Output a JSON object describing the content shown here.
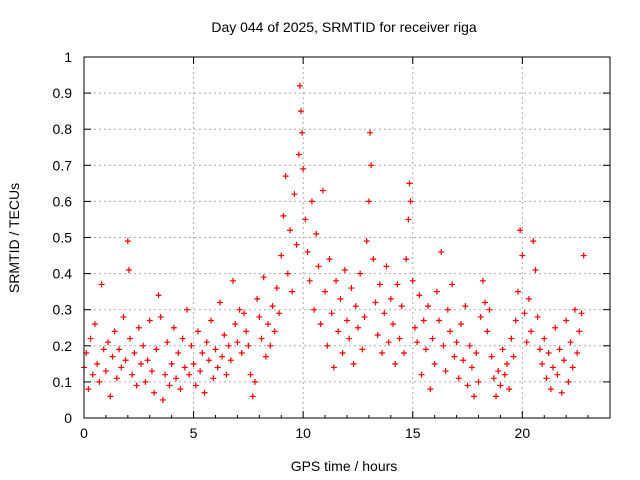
{
  "chart_data": {
    "type": "scatter",
    "title": "Day 044 of 2025, SRMTID for receiver riga",
    "xlabel": "GPS time / hours",
    "ylabel": "SRMTID / TECUs",
    "xlim": [
      0,
      24
    ],
    "ylim": [
      0,
      1
    ],
    "x_ticks": [
      0,
      5,
      10,
      15,
      20
    ],
    "x_tick_labels": [
      "0",
      "5",
      "10",
      "15",
      "20"
    ],
    "y_ticks": [
      0,
      0.1,
      0.2,
      0.3,
      0.4,
      0.5,
      0.6,
      0.7,
      0.8,
      0.9,
      1
    ],
    "y_tick_labels": [
      "0",
      "0.1",
      "0.2",
      "0.3",
      "0.4",
      "0.5",
      "0.6",
      "0.7",
      "0.8",
      "0.9",
      "1"
    ],
    "grid": true,
    "marker": "plus",
    "color": "#ff0000",
    "series": [
      {
        "name": "SRMTID",
        "points": [
          [
            0.0,
            0.14
          ],
          [
            0.1,
            0.18
          ],
          [
            0.2,
            0.08
          ],
          [
            0.3,
            0.22
          ],
          [
            0.4,
            0.12
          ],
          [
            0.5,
            0.26
          ],
          [
            0.6,
            0.15
          ],
          [
            0.7,
            0.1
          ],
          [
            0.8,
            0.37
          ],
          [
            0.9,
            0.19
          ],
          [
            1.0,
            0.13
          ],
          [
            1.1,
            0.21
          ],
          [
            1.2,
            0.06
          ],
          [
            1.3,
            0.17
          ],
          [
            1.4,
            0.24
          ],
          [
            1.5,
            0.11
          ],
          [
            1.6,
            0.19
          ],
          [
            1.7,
            0.14
          ],
          [
            1.8,
            0.28
          ],
          [
            1.9,
            0.16
          ],
          [
            2.0,
            0.49
          ],
          [
            2.05,
            0.41
          ],
          [
            2.1,
            0.22
          ],
          [
            2.2,
            0.12
          ],
          [
            2.3,
            0.18
          ],
          [
            2.4,
            0.09
          ],
          [
            2.5,
            0.25
          ],
          [
            2.6,
            0.15
          ],
          [
            2.7,
            0.2
          ],
          [
            2.8,
            0.1
          ],
          [
            2.9,
            0.16
          ],
          [
            3.0,
            0.27
          ],
          [
            3.1,
            0.13
          ],
          [
            3.2,
            0.07
          ],
          [
            3.3,
            0.19
          ],
          [
            3.4,
            0.34
          ],
          [
            3.5,
            0.28
          ],
          [
            3.6,
            0.05
          ],
          [
            3.7,
            0.12
          ],
          [
            3.8,
            0.21
          ],
          [
            3.9,
            0.09
          ],
          [
            4.0,
            0.15
          ],
          [
            4.1,
            0.25
          ],
          [
            4.2,
            0.11
          ],
          [
            4.3,
            0.18
          ],
          [
            4.4,
            0.08
          ],
          [
            4.5,
            0.22
          ],
          [
            4.6,
            0.14
          ],
          [
            4.7,
            0.3
          ],
          [
            4.8,
            0.12
          ],
          [
            4.9,
            0.2
          ],
          [
            5.0,
            0.15
          ],
          [
            5.1,
            0.09
          ],
          [
            5.2,
            0.24
          ],
          [
            5.3,
            0.13
          ],
          [
            5.4,
            0.18
          ],
          [
            5.5,
            0.07
          ],
          [
            5.6,
            0.21
          ],
          [
            5.7,
            0.16
          ],
          [
            5.8,
            0.27
          ],
          [
            5.9,
            0.11
          ],
          [
            6.0,
            0.19
          ],
          [
            6.1,
            0.14
          ],
          [
            6.2,
            0.32
          ],
          [
            6.3,
            0.17
          ],
          [
            6.4,
            0.23
          ],
          [
            6.5,
            0.12
          ],
          [
            6.6,
            0.2
          ],
          [
            6.7,
            0.16
          ],
          [
            6.8,
            0.38
          ],
          [
            6.9,
            0.26
          ],
          [
            7.0,
            0.21
          ],
          [
            7.1,
            0.3
          ],
          [
            7.2,
            0.18
          ],
          [
            7.3,
            0.29
          ],
          [
            7.4,
            0.24
          ],
          [
            7.5,
            0.2
          ],
          [
            7.6,
            0.12
          ],
          [
            7.7,
            0.06
          ],
          [
            7.8,
            0.1
          ],
          [
            7.9,
            0.33
          ],
          [
            8.0,
            0.28
          ],
          [
            8.1,
            0.22
          ],
          [
            8.2,
            0.39
          ],
          [
            8.3,
            0.17
          ],
          [
            8.4,
            0.26
          ],
          [
            8.5,
            0.2
          ],
          [
            8.6,
            0.31
          ],
          [
            8.7,
            0.24
          ],
          [
            8.8,
            0.36
          ],
          [
            8.9,
            0.29
          ],
          [
            9.0,
            0.45
          ],
          [
            9.1,
            0.56
          ],
          [
            9.2,
            0.67
          ],
          [
            9.3,
            0.4
          ],
          [
            9.4,
            0.52
          ],
          [
            9.5,
            0.35
          ],
          [
            9.6,
            0.62
          ],
          [
            9.7,
            0.48
          ],
          [
            9.8,
            0.73
          ],
          [
            9.85,
            0.92
          ],
          [
            9.9,
            0.85
          ],
          [
            9.95,
            0.79
          ],
          [
            10.0,
            0.69
          ],
          [
            10.1,
            0.55
          ],
          [
            10.2,
            0.46
          ],
          [
            10.3,
            0.38
          ],
          [
            10.4,
            0.6
          ],
          [
            10.5,
            0.3
          ],
          [
            10.6,
            0.51
          ],
          [
            10.7,
            0.42
          ],
          [
            10.8,
            0.26
          ],
          [
            10.9,
            0.63
          ],
          [
            11.0,
            0.35
          ],
          [
            11.1,
            0.2
          ],
          [
            11.2,
            0.44
          ],
          [
            11.3,
            0.29
          ],
          [
            11.4,
            0.14
          ],
          [
            11.5,
            0.38
          ],
          [
            11.6,
            0.24
          ],
          [
            11.7,
            0.33
          ],
          [
            11.8,
            0.18
          ],
          [
            11.9,
            0.41
          ],
          [
            12.0,
            0.27
          ],
          [
            12.1,
            0.22
          ],
          [
            12.2,
            0.36
          ],
          [
            12.3,
            0.15
          ],
          [
            12.4,
            0.31
          ],
          [
            12.5,
            0.25
          ],
          [
            12.6,
            0.4
          ],
          [
            12.7,
            0.19
          ],
          [
            12.8,
            0.28
          ],
          [
            12.9,
            0.49
          ],
          [
            13.0,
            0.6
          ],
          [
            13.05,
            0.79
          ],
          [
            13.1,
            0.7
          ],
          [
            13.2,
            0.44
          ],
          [
            13.3,
            0.32
          ],
          [
            13.4,
            0.23
          ],
          [
            13.5,
            0.37
          ],
          [
            13.6,
            0.18
          ],
          [
            13.7,
            0.29
          ],
          [
            13.8,
            0.42
          ],
          [
            13.9,
            0.21
          ],
          [
            14.0,
            0.33
          ],
          [
            14.1,
            0.26
          ],
          [
            14.2,
            0.15
          ],
          [
            14.3,
            0.37
          ],
          [
            14.4,
            0.22
          ],
          [
            14.5,
            0.31
          ],
          [
            14.6,
            0.18
          ],
          [
            14.7,
            0.44
          ],
          [
            14.8,
            0.55
          ],
          [
            14.85,
            0.65
          ],
          [
            14.9,
            0.6
          ],
          [
            15.0,
            0.38
          ],
          [
            15.1,
            0.25
          ],
          [
            15.2,
            0.21
          ],
          [
            15.3,
            0.34
          ],
          [
            15.4,
            0.12
          ],
          [
            15.5,
            0.27
          ],
          [
            15.6,
            0.19
          ],
          [
            15.7,
            0.31
          ],
          [
            15.8,
            0.08
          ],
          [
            15.9,
            0.22
          ],
          [
            16.0,
            0.15
          ],
          [
            16.1,
            0.35
          ],
          [
            16.2,
            0.27
          ],
          [
            16.3,
            0.46
          ],
          [
            16.4,
            0.2
          ],
          [
            16.5,
            0.13
          ],
          [
            16.6,
            0.3
          ],
          [
            16.7,
            0.24
          ],
          [
            16.8,
            0.37
          ],
          [
            16.9,
            0.17
          ],
          [
            17.0,
            0.21
          ],
          [
            17.1,
            0.11
          ],
          [
            17.2,
            0.26
          ],
          [
            17.3,
            0.16
          ],
          [
            17.4,
            0.31
          ],
          [
            17.5,
            0.09
          ],
          [
            17.6,
            0.2
          ],
          [
            17.7,
            0.14
          ],
          [
            17.8,
            0.06
          ],
          [
            17.9,
            0.18
          ],
          [
            18.0,
            0.1
          ],
          [
            18.1,
            0.28
          ],
          [
            18.2,
            0.38
          ],
          [
            18.3,
            0.32
          ],
          [
            18.4,
            0.24
          ],
          [
            18.5,
            0.3
          ],
          [
            18.6,
            0.17
          ],
          [
            18.7,
            0.11
          ],
          [
            18.8,
            0.06
          ],
          [
            18.9,
            0.13
          ],
          [
            19.0,
            0.09
          ],
          [
            19.1,
            0.19
          ],
          [
            19.2,
            0.12
          ],
          [
            19.3,
            0.15
          ],
          [
            19.4,
            0.08
          ],
          [
            19.5,
            0.22
          ],
          [
            19.6,
            0.17
          ],
          [
            19.7,
            0.27
          ],
          [
            19.8,
            0.35
          ],
          [
            19.9,
            0.52
          ],
          [
            20.0,
            0.45
          ],
          [
            20.1,
            0.29
          ],
          [
            20.2,
            0.21
          ],
          [
            20.3,
            0.33
          ],
          [
            20.4,
            0.24
          ],
          [
            20.5,
            0.49
          ],
          [
            20.6,
            0.41
          ],
          [
            20.7,
            0.28
          ],
          [
            20.8,
            0.19
          ],
          [
            20.9,
            0.15
          ],
          [
            21.0,
            0.22
          ],
          [
            21.1,
            0.11
          ],
          [
            21.2,
            0.18
          ],
          [
            21.3,
            0.08
          ],
          [
            21.4,
            0.14
          ],
          [
            21.5,
            0.25
          ],
          [
            21.6,
            0.12
          ],
          [
            21.7,
            0.19
          ],
          [
            21.8,
            0.07
          ],
          [
            21.9,
            0.16
          ],
          [
            22.0,
            0.27
          ],
          [
            22.1,
            0.1
          ],
          [
            22.2,
            0.21
          ],
          [
            22.3,
            0.14
          ],
          [
            22.4,
            0.3
          ],
          [
            22.5,
            0.18
          ],
          [
            22.6,
            0.24
          ],
          [
            22.7,
            0.29
          ],
          [
            22.8,
            0.45
          ]
        ]
      }
    ]
  }
}
